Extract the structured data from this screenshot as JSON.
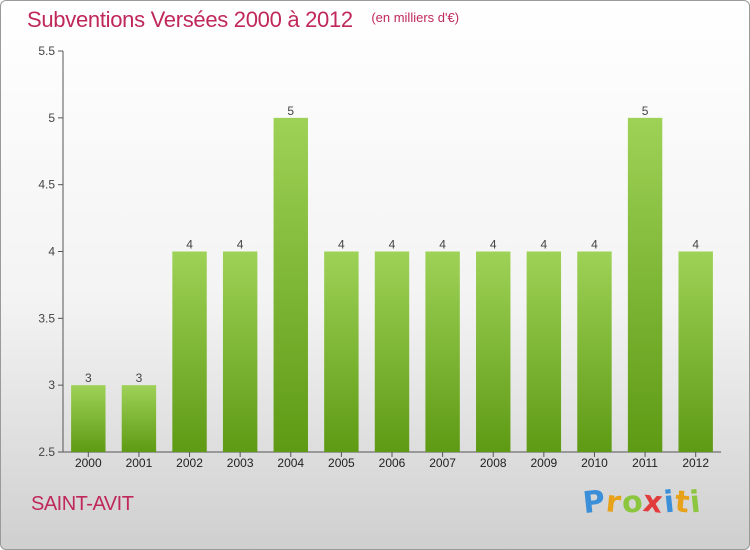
{
  "chart_data": {
    "type": "bar",
    "title": "Subventions Versées 2000 à 2012",
    "subtitle": "(en milliers d'€)",
    "categories": [
      "2000",
      "2001",
      "2002",
      "2003",
      "2004",
      "2005",
      "2006",
      "2007",
      "2008",
      "2009",
      "2010",
      "2011",
      "2012"
    ],
    "values": [
      3,
      3,
      4,
      4,
      5,
      4,
      4,
      4,
      4,
      4,
      4,
      5,
      4
    ],
    "data_labels": [
      "3",
      "3",
      "4",
      "4",
      "5",
      "4",
      "4",
      "4",
      "4",
      "4",
      "4",
      "5",
      "4"
    ],
    "yticks": [
      "2.5",
      "3",
      "3.5",
      "4",
      "4.5",
      "5",
      "5.5"
    ],
    "ylim": [
      2.5,
      5.5
    ],
    "xlabel": "",
    "ylabel": "",
    "grid": false,
    "bar_color_top": "#9ed257",
    "bar_color_bottom": "#5e9a14"
  },
  "footer": {
    "commune": "SAINT-AVIT",
    "logo_letters": [
      "P",
      "r",
      "o",
      "x",
      "i",
      "t",
      "i"
    ],
    "logo_colors": [
      "#3a8fd8",
      "#e8a21a",
      "#8cc63f",
      "#e23b3b",
      "#3a8fd8",
      "#e8a21a",
      "#8cc63f"
    ]
  }
}
